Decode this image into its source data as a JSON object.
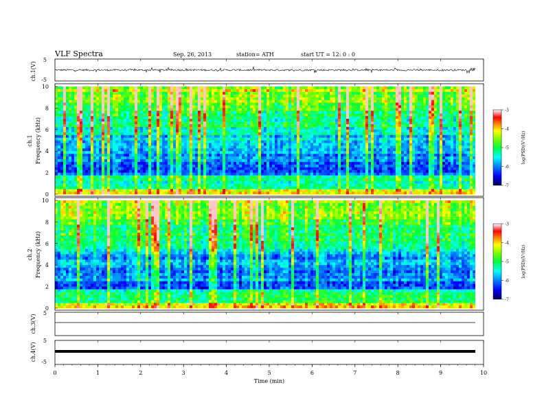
{
  "header": {
    "title": "VLF  Spectra",
    "date": "Sep. 26, 2013",
    "station": "station= ATH",
    "start": "start  UT  =    12: 0  : 0"
  },
  "colors": {
    "background": "#ffffff",
    "axis": "#000000",
    "waveform": "#000000",
    "colormap": [
      "#000080",
      "#0000ff",
      "#0080ff",
      "#00ffff",
      "#00ff80",
      "#80ff00",
      "#ffff00",
      "#ff8000",
      "#ff0000",
      "#ffffff"
    ]
  },
  "chart_data": [
    {
      "type": "line",
      "ylabel": "ch.1(V)",
      "ylim": [
        -5,
        5
      ],
      "yticks": [
        "5",
        "-5"
      ],
      "xlim": [
        0,
        10
      ],
      "description_of_signal": "noisy waveform centred near 0 V, spikes to about ±3 V"
    },
    {
      "type": "heatmap",
      "ylabel": "ch.1\nFrequency  (kHz)",
      "ylabel_lines": [
        "ch.1",
        "Frequency  (kHz)"
      ],
      "ylim": [
        0,
        10
      ],
      "yticks": [
        "0",
        "2",
        "4",
        "6",
        "8",
        "10"
      ],
      "xlim": [
        0,
        9.8
      ],
      "colorbar": {
        "label": "log(PSD)(V²/Hz)",
        "ticks": [
          "-3",
          "-4",
          "-5",
          "-6",
          "-7"
        ],
        "range": [
          -7,
          -3
        ]
      }
    },
    {
      "type": "heatmap",
      "ylabel_lines": [
        "ch.2",
        "Frequency  (kHz)"
      ],
      "ylim": [
        0,
        10
      ],
      "yticks": [
        "0",
        "2",
        "4",
        "6",
        "8",
        "10"
      ],
      "xlim": [
        0,
        9.8
      ],
      "colorbar": {
        "label": "log(PSD)(V²/Hz)",
        "ticks": [
          "-3",
          "-4",
          "-5",
          "-6",
          "-7"
        ],
        "range": [
          -7,
          -3
        ]
      }
    },
    {
      "type": "line",
      "ylabel": "ch.3(V)",
      "ylim": [
        -5,
        5
      ],
      "yticks": [
        "5",
        "-5"
      ],
      "level": -0.3
    },
    {
      "type": "line",
      "ylabel": "ch.4(V)",
      "ylim": [
        -5,
        5
      ],
      "yticks": [
        "5",
        "-5"
      ],
      "level": 0
    }
  ],
  "xaxis": {
    "label": "Time  (min)",
    "ticks": [
      "0",
      "1",
      "2",
      "3",
      "4",
      "5",
      "6",
      "7",
      "8",
      "9",
      "10"
    ],
    "range": [
      0,
      10
    ]
  }
}
